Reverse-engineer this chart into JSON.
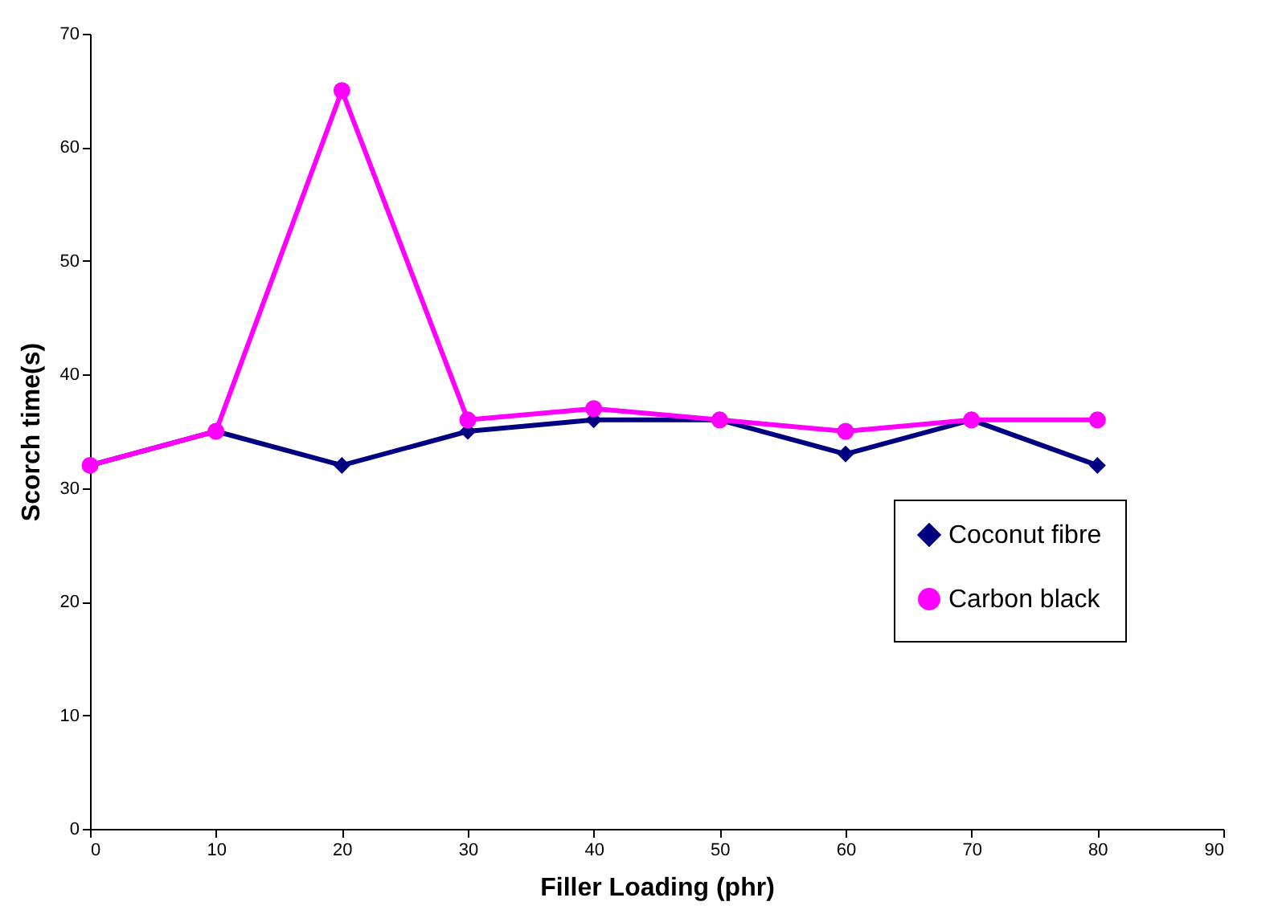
{
  "chart_data": {
    "type": "line",
    "xlabel": "Filler Loading (phr)",
    "ylabel": "Scorch time(s)",
    "x": [
      0,
      10,
      20,
      30,
      40,
      50,
      60,
      70,
      80
    ],
    "series": [
      {
        "name": "Coconut fibre",
        "color": "#000080",
        "marker": "diamond",
        "values": [
          32,
          35,
          32,
          35,
          36,
          36,
          33,
          36,
          32
        ]
      },
      {
        "name": "Carbon black",
        "color": "#ff00ff",
        "marker": "circle",
        "values": [
          32,
          35,
          65,
          36,
          37,
          36,
          35,
          36,
          36
        ]
      }
    ],
    "xlim": [
      0,
      90
    ],
    "xticks": [
      0,
      10,
      20,
      30,
      40,
      50,
      60,
      70,
      80,
      90
    ],
    "ylim": [
      0,
      70
    ],
    "yticks": [
      0,
      10,
      20,
      30,
      40,
      50,
      60,
      70
    ],
    "grid": false,
    "legend": "right",
    "line_style": "solid"
  }
}
